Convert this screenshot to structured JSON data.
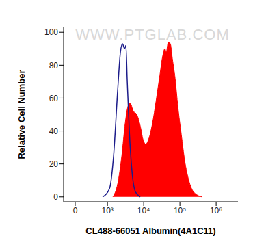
{
  "chart_data": {
    "type": "area",
    "x_label": "CL488-66051 Albumin(4A1C11)",
    "y_label": "Relative Cell Number",
    "annotations": [
      "WWW.PTGLAB.COM"
    ],
    "log": "x",
    "xlim": [
      -360,
      4000000
    ],
    "xticks": [
      0,
      {
        "value": 1000,
        "label": "10³"
      },
      {
        "value": 10000,
        "label": "10⁴"
      },
      {
        "value": 100000,
        "label": "10⁵"
      },
      {
        "value": 1000000,
        "label": "10⁶"
      }
    ],
    "ylim": [
      -3,
      103
    ],
    "yticks": [
      0,
      20,
      40,
      60,
      80,
      100
    ],
    "series": [
      {
        "type": "area",
        "color": "#ff0000",
        "x": [
          1416,
          1919,
          2490,
          3099,
          3681,
          4198,
          5216,
          6473,
          8050,
          9575,
          11400,
          14160,
          17590,
          21880,
          27180,
          33760,
          38450,
          41980,
          47780,
          54450,
          61940,
          73790,
          87700,
          109100,
          135600,
          175900,
          238200,
          401600
        ],
        "values": [
          0,
          8,
          25,
          45,
          55,
          57,
          52,
          50,
          43,
          35,
          32,
          36,
          45,
          58,
          72,
          86,
          90,
          88,
          94,
          93,
          84,
          72,
          55,
          38,
          22,
          10,
          3,
          0
        ]
      },
      {
        "type": "line",
        "color": "#1c1c8a",
        "x": [
          851,
          1139,
          1478,
          1919,
          2280,
          2600,
          2963,
          3230,
          3523,
          4014,
          4779,
          5939,
          8050
        ],
        "values": [
          0,
          5,
          25,
          65,
          88,
          93,
          90,
          92,
          70,
          40,
          15,
          3,
          0
        ]
      }
    ]
  }
}
